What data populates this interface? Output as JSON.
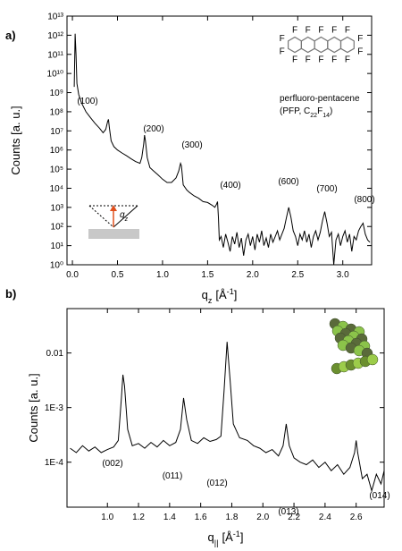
{
  "chart_data": [
    {
      "type": "line",
      "panel_label": "a)",
      "y_label": "Counts [a. u.]",
      "x_label": {
        "symbol": "q",
        "subscript": "z",
        "unit": "[Å",
        "exponent": "-1",
        "unit_end": "]"
      },
      "annotations": [
        "(100)",
        "(200)",
        "(300)",
        "(400)",
        "(600)",
        "(700)",
        "(800)"
      ],
      "compound_name": "perfluoro-pentacene",
      "formula": [
        "(PFP, C",
        "22",
        "F",
        "14",
        ")"
      ],
      "atom_label": "F",
      "inset_label": {
        "symbol": "q",
        "subscript": "z"
      },
      "log_y": true,
      "color": "#000000",
      "xlim": [
        -0.06,
        3.32
      ],
      "ylim": [
        1,
        10000000000000
      ],
      "xticks": [
        {
          "value": 0,
          "label": "0.0"
        },
        0.5,
        {
          "value": 1,
          "label": "1.0"
        },
        1.5,
        {
          "value": 2,
          "label": "2.0"
        },
        2.5,
        {
          "value": 3,
          "label": "3.0"
        }
      ],
      "yticks": [
        {
          "value": 1,
          "label": "10⁰"
        },
        {
          "value": 10,
          "label": "10¹"
        },
        {
          "value": 100,
          "label": "10²"
        },
        {
          "value": 1000,
          "label": "10³"
        },
        {
          "value": 10000,
          "label": "10⁴"
        },
        {
          "value": 100000,
          "label": "10⁵"
        },
        {
          "value": 1000000,
          "label": "10⁶"
        },
        {
          "value": 10000000,
          "label": "10⁷"
        },
        {
          "value": 100000000,
          "label": "10⁸"
        },
        {
          "value": 1000000000,
          "label": "10⁹"
        },
        {
          "value": 10000000000,
          "label": "10¹⁰"
        },
        {
          "value": 100000000000,
          "label": "10¹¹"
        },
        {
          "value": 1000000000000,
          "label": "10¹²"
        },
        {
          "value": 10000000000000,
          "label": "10¹³"
        }
      ],
      "x": [
        0.02,
        0.03,
        0.04,
        0.05,
        0.07,
        0.1,
        0.15,
        0.2,
        0.25,
        0.3,
        0.34,
        0.37,
        0.39,
        0.4,
        0.41,
        0.43,
        0.46,
        0.5,
        0.55,
        0.6,
        0.65,
        0.7,
        0.75,
        0.77,
        0.79,
        0.8,
        0.81,
        0.83,
        0.86,
        0.9,
        0.95,
        1.0,
        1.05,
        1.1,
        1.15,
        1.18,
        1.2,
        1.21,
        1.23,
        1.27,
        1.3,
        1.35,
        1.4,
        1.45,
        1.5,
        1.55,
        1.58,
        1.6,
        1.61,
        1.62,
        1.63,
        1.65,
        1.675,
        1.7,
        1.725,
        1.75,
        1.775,
        1.8,
        1.825,
        1.85,
        1.875,
        1.9,
        1.925,
        1.95,
        1.975,
        2.0,
        2.025,
        2.05,
        2.075,
        2.1,
        2.125,
        2.15,
        2.175,
        2.2,
        2.225,
        2.25,
        2.275,
        2.3,
        2.325,
        2.35,
        2.375,
        2.4,
        2.425,
        2.45,
        2.475,
        2.5,
        2.525,
        2.55,
        2.575,
        2.6,
        2.625,
        2.65,
        2.675,
        2.7,
        2.725,
        2.75,
        2.775,
        2.8,
        2.825,
        2.85,
        2.875,
        2.9,
        2.925,
        2.95,
        2.975,
        3.0,
        3.025,
        3.05,
        3.075,
        3.1,
        3.125,
        3.15,
        3.175,
        3.2,
        3.225,
        3.25,
        3.275,
        3.3
      ],
      "values": [
        2000000000,
        1200000000000,
        100000000000,
        3000000000,
        800000000,
        300000000,
        100000000,
        50000000,
        25000000,
        14000000,
        8000000,
        12000000,
        30000000,
        40000000,
        15000000,
        3000000,
        1500000,
        1000000,
        700000,
        500000,
        350000,
        250000,
        200000,
        400000,
        2000000,
        6000000,
        3000000,
        400000,
        120000,
        80000,
        50000,
        30000,
        20000,
        20000,
        35000,
        80000,
        200000,
        150000,
        15000,
        8000,
        6000,
        4000,
        3000,
        2000,
        1800,
        1300,
        1000,
        1500,
        2000,
        300,
        20,
        30,
        8,
        40,
        15,
        5,
        30,
        12,
        50,
        8,
        25,
        3,
        20,
        40,
        10,
        30,
        6,
        40,
        15,
        60,
        10,
        25,
        8,
        40,
        15,
        30,
        60,
        20,
        40,
        80,
        300,
        1000,
        300,
        60,
        30,
        10,
        40,
        20,
        60,
        15,
        40,
        8,
        30,
        60,
        20,
        50,
        200,
        600,
        150,
        30,
        50,
        1,
        20,
        40,
        10,
        30,
        60,
        15,
        40,
        5,
        30,
        20,
        60,
        100,
        150,
        40,
        20,
        15
      ]
    },
    {
      "type": "line",
      "panel_label": "b)",
      "y_label": "Counts [a. u.]",
      "x_label": {
        "symbol": "q",
        "subscript": "||",
        "unit": "[Å",
        "exponent": "-1",
        "unit_end": "]"
      },
      "annotations": [
        "(002)",
        "(011)",
        "(012)",
        "(013)",
        "(014)"
      ],
      "log_y": true,
      "color": "#000000",
      "xlim": [
        0.74,
        2.78
      ],
      "ylim": [
        1.5e-05,
        0.065
      ],
      "xticks": [
        {
          "value": 1,
          "label": "1.0"
        },
        1.2,
        1.4,
        1.6,
        1.8,
        {
          "value": 2,
          "label": "2.0"
        },
        2.2,
        2.4,
        2.6
      ],
      "yticks": [
        {
          "value": 0.0001,
          "label": "1E-4"
        },
        {
          "value": 0.001,
          "label": "1E-3"
        },
        0.01
      ],
      "x": [
        0.76,
        0.8,
        0.84,
        0.88,
        0.92,
        0.96,
        1.0,
        1.04,
        1.07,
        1.09,
        1.1,
        1.11,
        1.13,
        1.16,
        1.2,
        1.24,
        1.28,
        1.32,
        1.36,
        1.4,
        1.44,
        1.47,
        1.49,
        1.51,
        1.54,
        1.58,
        1.62,
        1.66,
        1.7,
        1.73,
        1.75,
        1.77,
        1.79,
        1.81,
        1.85,
        1.9,
        1.94,
        1.98,
        2.02,
        2.06,
        2.1,
        2.13,
        2.15,
        2.17,
        2.2,
        2.24,
        2.28,
        2.32,
        2.36,
        2.4,
        2.44,
        2.48,
        2.52,
        2.56,
        2.59,
        2.6,
        2.61,
        2.64,
        2.67,
        2.7,
        2.73,
        2.76,
        2.78
      ],
      "values": [
        0.00018,
        0.00015,
        0.0002,
        0.00016,
        0.00019,
        0.00015,
        0.00017,
        0.00019,
        0.00025,
        0.0015,
        0.004,
        0.0025,
        0.0004,
        0.0002,
        0.00022,
        0.00018,
        0.00023,
        0.00019,
        0.00025,
        0.0002,
        0.00023,
        0.0004,
        0.0015,
        0.0006,
        0.00025,
        0.00022,
        0.00028,
        0.00024,
        0.00026,
        0.0003,
        0.002,
        0.016,
        0.003,
        0.0005,
        0.00028,
        0.00025,
        0.0002,
        0.00018,
        0.00015,
        0.00017,
        0.00013,
        0.0002,
        0.0005,
        0.0002,
        0.00012,
        0.0001,
        9e-05,
        0.00011,
        8e-05,
        0.0001,
        7e-05,
        9e-05,
        6e-05,
        8e-05,
        0.00015,
        0.00025,
        0.00015,
        5e-05,
        6e-05,
        3e-05,
        6e-05,
        4e-05,
        7e-05
      ]
    }
  ]
}
